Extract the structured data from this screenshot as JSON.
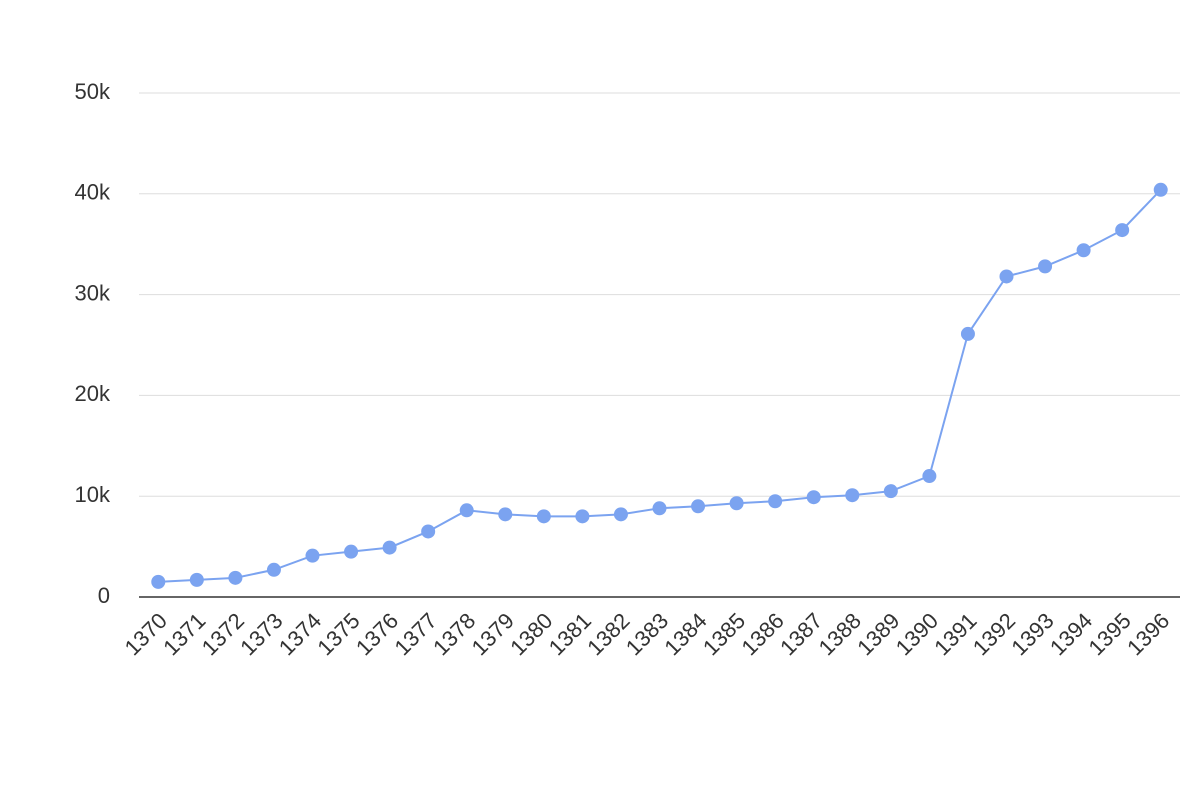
{
  "chart_data": {
    "type": "line",
    "categories": [
      "1370",
      "1371",
      "1372",
      "1373",
      "1374",
      "1375",
      "1376",
      "1377",
      "1378",
      "1379",
      "1380",
      "1381",
      "1382",
      "1383",
      "1384",
      "1385",
      "1386",
      "1387",
      "1388",
      "1389",
      "1390",
      "1391",
      "1392",
      "1393",
      "1394",
      "1395",
      "1396"
    ],
    "values": [
      1500,
      1700,
      1900,
      2700,
      4100,
      4500,
      4900,
      6500,
      8600,
      8200,
      8000,
      8000,
      8200,
      8800,
      9000,
      9300,
      9500,
      9900,
      10100,
      10500,
      12000,
      26100,
      31800,
      32800,
      34400,
      36400,
      40400
    ],
    "color": "#7ba3f0",
    "ylim": [
      0,
      50000
    ],
    "yticks": [
      0,
      {
        "value": 10000,
        "label": "10k"
      },
      {
        "value": 20000,
        "label": "20k"
      },
      {
        "value": 30000,
        "label": "30k"
      },
      {
        "value": 40000,
        "label": "40k"
      },
      {
        "value": 50000,
        "label": "50k"
      }
    ],
    "grid": true
  }
}
